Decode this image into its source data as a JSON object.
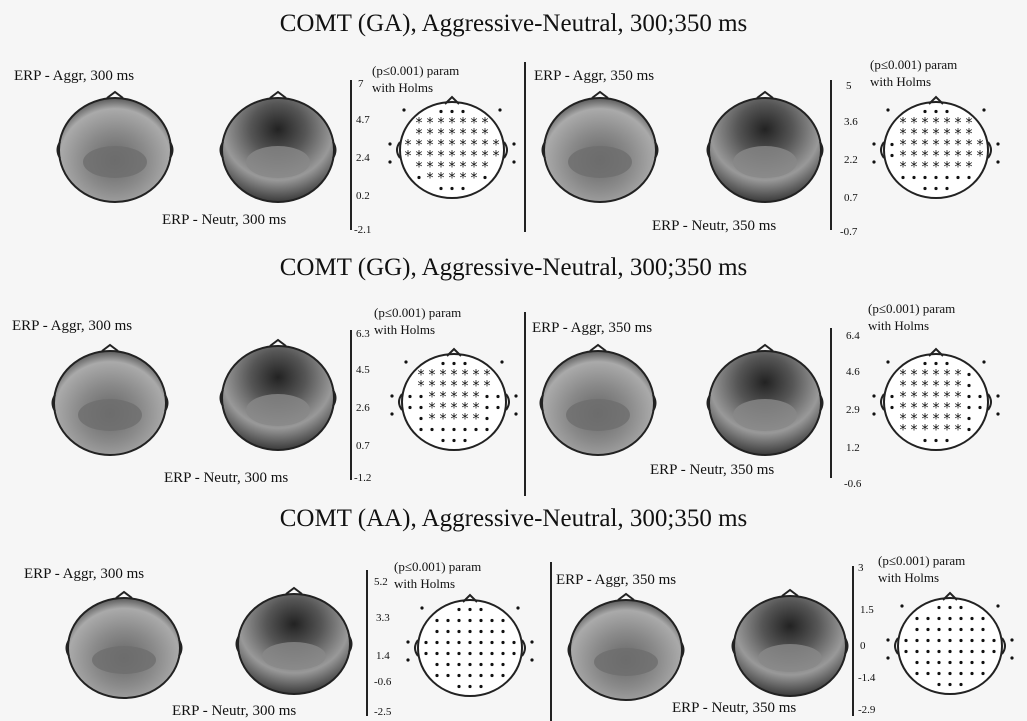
{
  "panels": [
    {
      "title": "COMT (GA), Aggressive-Neutral, 300;350 ms",
      "left": {
        "aggr_label": "ERP - Aggr, 300 ms",
        "neutr_label": "ERP - Neutr, 300 ms",
        "sig_line1": "(p≤0.001) param",
        "sig_line2": "with Holms",
        "scale": [
          "7",
          "4.7",
          "2.4",
          "0.2",
          "-2.1"
        ]
      },
      "right": {
        "aggr_label": "ERP - Aggr, 350 ms",
        "neutr_label": "ERP - Neutr, 350 ms",
        "sig_line1": "(p≤0.001) param",
        "sig_line2": "with Holms",
        "scale": [
          "5",
          "3.6",
          "2.2",
          "0.7",
          "-0.7"
        ]
      }
    },
    {
      "title": "COMT (GG), Aggressive-Neutral, 300;350 ms",
      "left": {
        "aggr_label": "ERP - Aggr, 300 ms",
        "neutr_label": "ERP - Neutr, 300 ms",
        "sig_line1": "(p≤0.001) param",
        "sig_line2": "with Holms",
        "scale": [
          "6.3",
          "4.5",
          "2.6",
          "0.7",
          "-1.2"
        ]
      },
      "right": {
        "aggr_label": "ERP - Aggr, 350 ms",
        "neutr_label": "ERP - Neutr, 350 ms",
        "sig_line1": "(p≤0.001) param",
        "sig_line2": "with Holms",
        "scale": [
          "6.4",
          "4.6",
          "2.9",
          "1.2",
          "-0.6"
        ]
      }
    },
    {
      "title": "COMT (AA), Aggressive-Neutral, 300;350 ms",
      "left": {
        "aggr_label": "ERP - Aggr, 300 ms",
        "neutr_label": "ERP - Neutr, 300 ms",
        "sig_line1": "(p≤0.001) param",
        "sig_line2": "with Holms",
        "scale": [
          "5.2",
          "3.3",
          "1.4",
          "-0.6",
          "-2.5"
        ]
      },
      "right": {
        "aggr_label": "ERP - Aggr, 350 ms",
        "neutr_label": "ERP - Neutr, 350 ms",
        "sig_line1": "(p≤0.001) param",
        "sig_line2": "with Holms",
        "scale": [
          "3",
          "1.5",
          "0",
          "-1.4",
          "-2.9"
        ]
      }
    }
  ]
}
